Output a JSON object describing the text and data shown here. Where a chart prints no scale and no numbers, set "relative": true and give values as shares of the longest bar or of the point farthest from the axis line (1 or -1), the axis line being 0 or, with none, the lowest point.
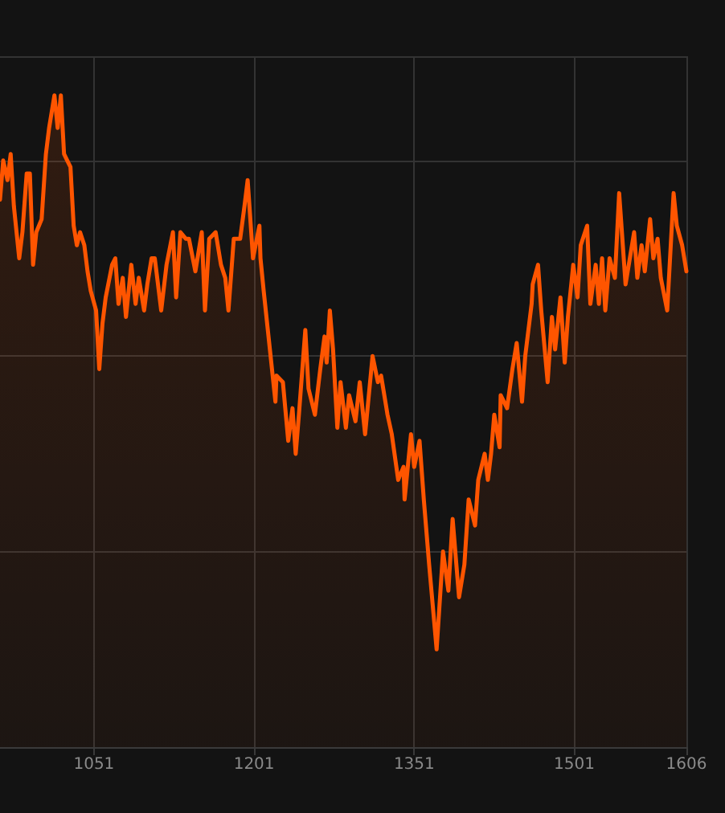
{
  "chart_data": {
    "type": "area",
    "relative": true,
    "grid": true,
    "xlim": [
      963,
      1606
    ],
    "xticks": [
      1051,
      1201,
      1351,
      1501,
      1606
    ],
    "series": [
      {
        "color": "#ff5500",
        "x": [
          963,
          966,
          970,
          973,
          976,
          981,
          984,
          988,
          991,
          994,
          997,
          1002,
          1006,
          1009,
          1014,
          1017,
          1020,
          1023,
          1026,
          1029,
          1032,
          1035,
          1038,
          1042,
          1045,
          1048,
          1053,
          1056,
          1059,
          1062,
          1068,
          1071,
          1074,
          1078,
          1081,
          1086,
          1090,
          1093,
          1098,
          1101,
          1105,
          1108,
          1114,
          1119,
          1125,
          1128,
          1132,
          1137,
          1140,
          1146,
          1152,
          1155,
          1159,
          1165,
          1170,
          1174,
          1177,
          1182,
          1185,
          1188,
          1192,
          1195,
          1200,
          1206,
          1207,
          1210,
          1221,
          1222,
          1228,
          1233,
          1237,
          1240,
          1243,
          1249,
          1252,
          1258,
          1263,
          1267,
          1269,
          1272,
          1275,
          1279,
          1282,
          1287,
          1290,
          1296,
          1300,
          1305,
          1312,
          1317,
          1320,
          1326,
          1330,
          1336,
          1341,
          1342,
          1348,
          1351,
          1356,
          1360,
          1365,
          1372,
          1378,
          1383,
          1387,
          1393,
          1398,
          1402,
          1408,
          1411,
          1417,
          1420,
          1423,
          1426,
          1431,
          1432,
          1438,
          1443,
          1447,
          1452,
          1455,
          1461,
          1462,
          1467,
          1470,
          1476,
          1480,
          1483,
          1488,
          1492,
          1495,
          1500,
          1504,
          1507,
          1513,
          1516,
          1521,
          1524,
          1527,
          1530,
          1534,
          1539,
          1543,
          1549,
          1557,
          1560,
          1564,
          1567,
          1572,
          1575,
          1579,
          1582,
          1588,
          1594,
          1597,
          1602,
          1606
        ],
        "values": [
          0.84,
          0.9,
          0.87,
          0.91,
          0.83,
          0.75,
          0.79,
          0.88,
          0.88,
          0.74,
          0.79,
          0.81,
          0.91,
          0.95,
          1.0,
          0.95,
          1.0,
          0.91,
          0.9,
          0.89,
          0.8,
          0.77,
          0.79,
          0.77,
          0.73,
          0.7,
          0.67,
          0.58,
          0.65,
          0.69,
          0.74,
          0.75,
          0.68,
          0.72,
          0.66,
          0.74,
          0.68,
          0.72,
          0.67,
          0.71,
          0.75,
          0.75,
          0.67,
          0.74,
          0.79,
          0.69,
          0.79,
          0.78,
          0.78,
          0.73,
          0.79,
          0.67,
          0.78,
          0.79,
          0.74,
          0.72,
          0.67,
          0.78,
          0.78,
          0.78,
          0.83,
          0.87,
          0.75,
          0.8,
          0.75,
          0.7,
          0.53,
          0.57,
          0.56,
          0.47,
          0.52,
          0.45,
          0.51,
          0.64,
          0.55,
          0.51,
          0.58,
          0.63,
          0.59,
          0.67,
          0.61,
          0.49,
          0.56,
          0.49,
          0.54,
          0.5,
          0.56,
          0.48,
          0.6,
          0.56,
          0.57,
          0.51,
          0.48,
          0.41,
          0.43,
          0.38,
          0.48,
          0.43,
          0.47,
          0.38,
          0.28,
          0.15,
          0.3,
          0.24,
          0.35,
          0.23,
          0.28,
          0.38,
          0.34,
          0.41,
          0.45,
          0.41,
          0.45,
          0.51,
          0.46,
          0.54,
          0.52,
          0.58,
          0.62,
          0.53,
          0.6,
          0.68,
          0.71,
          0.74,
          0.67,
          0.56,
          0.66,
          0.61,
          0.69,
          0.59,
          0.66,
          0.74,
          0.69,
          0.77,
          0.8,
          0.68,
          0.74,
          0.68,
          0.75,
          0.67,
          0.75,
          0.72,
          0.85,
          0.71,
          0.79,
          0.72,
          0.77,
          0.73,
          0.81,
          0.75,
          0.78,
          0.72,
          0.67,
          0.85,
          0.8,
          0.77,
          0.73
        ]
      }
    ]
  }
}
